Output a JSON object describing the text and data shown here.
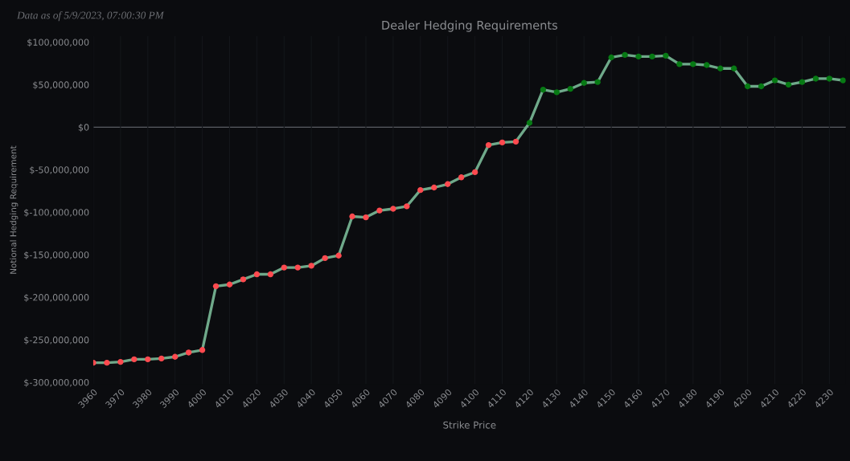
{
  "chart_data": {
    "type": "line",
    "title": "Dealer Hedging Requirements",
    "xlabel": "Strike Price",
    "ylabel": "Notional Hedging Requirement",
    "annotations": [
      "Data as of 5/9/2023, 07:00:30 PM"
    ],
    "x": [
      3960,
      3965,
      3970,
      3975,
      3980,
      3985,
      3990,
      3995,
      4000,
      4005,
      4010,
      4015,
      4020,
      4025,
      4030,
      4035,
      4040,
      4045,
      4050,
      4055,
      4060,
      4065,
      4070,
      4075,
      4080,
      4085,
      4090,
      4095,
      4100,
      4105,
      4110,
      4115,
      4120,
      4125,
      4130,
      4135,
      4140,
      4145,
      4150,
      4155,
      4160,
      4165,
      4170,
      4175,
      4180,
      4185,
      4190,
      4195,
      4200,
      4205,
      4210,
      4215,
      4220,
      4225,
      4230,
      4235
    ],
    "series": [
      {
        "color": "#6fa98a",
        "marker": "circle",
        "values": [
          -277000000,
          -277000000,
          -276000000,
          -273000000,
          -273000000,
          -272000000,
          -270000000,
          -265000000,
          -262000000,
          -187000000,
          -185000000,
          -179000000,
          -173000000,
          -173000000,
          -165000000,
          -165000000,
          -163000000,
          -154000000,
          -151000000,
          -105000000,
          -106000000,
          -98000000,
          -96000000,
          -93000000,
          -74000000,
          -71000000,
          -67000000,
          -59000000,
          -53000000,
          -21000000,
          -18000000,
          -17000000,
          5000000,
          44000000,
          41000000,
          45000000,
          52000000,
          53000000,
          82000000,
          85000000,
          83000000,
          83000000,
          84000000,
          74000000,
          74000000,
          73000000,
          69000000,
          69000000,
          48000000,
          48000000,
          55000000,
          50000000,
          53000000,
          57000000,
          57000000,
          55000000
        ],
        "colors": [
          "#ff4a4f",
          "#ff4a4f",
          "#ff4a4f",
          "#ff4a4f",
          "#ff4a4f",
          "#ff4a4f",
          "#ff4a4f",
          "#ff4a4f",
          "#ff4a4f",
          "#ff4a4f",
          "#ff4a4f",
          "#ff4a4f",
          "#ff4a4f",
          "#ff4a4f",
          "#ff4a4f",
          "#ff4a4f",
          "#ff4a4f",
          "#ff4a4f",
          "#ff4a4f",
          "#ff4a4f",
          "#ff4a4f",
          "#ff4a4f",
          "#ff4a4f",
          "#ff4a4f",
          "#ff4a4f",
          "#ff4a4f",
          "#ff4a4f",
          "#ff4a4f",
          "#ff4a4f",
          "#ff4a4f",
          "#ff4a4f",
          "#ff4a4f",
          "#077a14",
          "#077a14",
          "#077a14",
          "#077a14",
          "#077a14",
          "#077a14",
          "#077a14",
          "#077a14",
          "#077a14",
          "#077a14",
          "#077a14",
          "#077a14",
          "#077a14",
          "#077a14",
          "#077a14",
          "#077a14",
          "#077a14",
          "#077a14",
          "#077a14",
          "#077a14",
          "#077a14",
          "#077a14",
          "#077a14",
          "#077a14"
        ]
      }
    ],
    "xlim": [
      3960,
      4236
    ],
    "ylim": [
      -302000000,
      107000000
    ],
    "xticks": [
      3960,
      3970,
      3980,
      3990,
      4000,
      4010,
      4020,
      4030,
      4040,
      4050,
      4060,
      4070,
      4080,
      4090,
      4100,
      4110,
      4120,
      4130,
      4140,
      4150,
      4160,
      4170,
      4180,
      4190,
      4200,
      4210,
      4220,
      4230
    ],
    "yticks": [
      {
        "value": 100000000,
        "label": "$100,000,000"
      },
      {
        "value": 50000000,
        "label": "$50,000,000"
      },
      {
        "value": 0,
        "label": "$0"
      },
      {
        "value": -50000000,
        "label": "$-50,000,000"
      },
      {
        "value": -100000000,
        "label": "$-100,000,000"
      },
      {
        "value": -150000000,
        "label": "$-150,000,000"
      },
      {
        "value": -200000000,
        "label": "$-200,000,000"
      },
      {
        "value": -250000000,
        "label": "$-250,000,000"
      },
      {
        "value": -300000000,
        "label": "$-300,000,000"
      }
    ],
    "ref_lines": [
      {
        "axis": "y",
        "value": 0,
        "color": "#5a5d63"
      }
    ],
    "grid": "x",
    "legend": false
  }
}
